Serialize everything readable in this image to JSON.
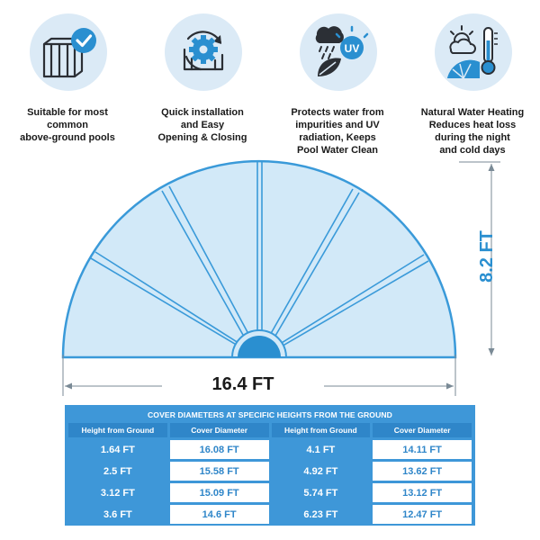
{
  "features": [
    {
      "icon": "above-ground-pool-check-icon",
      "lines": [
        "Suitable for most",
        "common",
        "above-ground pools"
      ]
    },
    {
      "icon": "gear-installation-icon",
      "lines": [
        "Quick installation",
        "and Easy",
        "Opening & Closing"
      ]
    },
    {
      "icon": "rain-uv-leaf-icon",
      "lines": [
        "Protects water from",
        "impurities and UV",
        "radiation, Keeps",
        "Pool Water Clean"
      ]
    },
    {
      "icon": "sun-thermometer-icon",
      "lines": [
        "Natural Water Heating",
        "Reduces heat loss",
        "during the night",
        "and cold days"
      ]
    }
  ],
  "diagram": {
    "width_label": "16.4 FT",
    "height_label": "8.2 FT"
  },
  "table": {
    "title": "COVER DIAMETERS AT SPECIFIC HEIGHTS FROM THE GROUND",
    "headers": [
      "Height from Ground",
      "Cover Diameter",
      "Height from Ground",
      "Cover Diameter"
    ],
    "rows": [
      [
        "1.64 FT",
        "16.08 FT",
        "4.1 FT",
        "14.11 FT"
      ],
      [
        "2.5 FT",
        "15.58 FT",
        "4.92 FT",
        "13.62 FT"
      ],
      [
        "3.12 FT",
        "15.09 FT",
        "5.74 FT",
        "13.12 FT"
      ],
      [
        "3.6 FT",
        "14.6 FT",
        "6.23 FT",
        "12.47 FT"
      ]
    ]
  },
  "colors": {
    "accent": "#2a8fd0",
    "cover_fill": "#d2e9f8",
    "cover_stroke": "#3a9ad9",
    "icon_bg": "#dbeaf6"
  }
}
